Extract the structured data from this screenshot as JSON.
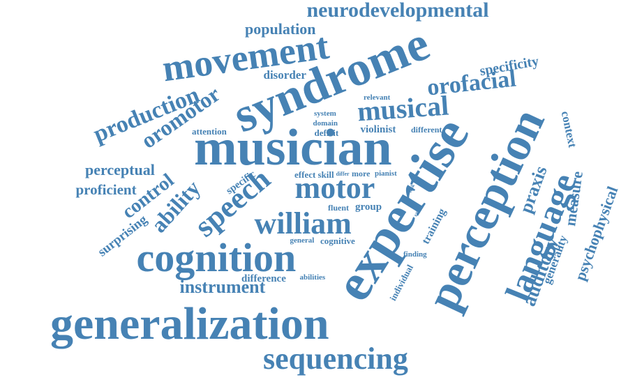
{
  "color": "#4682b4",
  "words": [
    {
      "text": "neurodevelopmental",
      "size": 30,
      "rot": 0
    },
    {
      "text": "population",
      "size": 22,
      "rot": 0
    },
    {
      "text": "movement",
      "size": 54,
      "rot": -8
    },
    {
      "text": "syndrome",
      "size": 70,
      "rot": -22
    },
    {
      "text": "specificity",
      "size": 20,
      "rot": -10
    },
    {
      "text": "disorder",
      "size": 17,
      "rot": 0
    },
    {
      "text": "orofacial",
      "size": 34,
      "rot": -6
    },
    {
      "text": "production",
      "size": 34,
      "rot": -22
    },
    {
      "text": "oromotor",
      "size": 32,
      "rot": -35
    },
    {
      "text": "musical",
      "size": 40,
      "rot": -4
    },
    {
      "text": "relevant",
      "size": 11,
      "rot": 0
    },
    {
      "text": "system",
      "size": 11,
      "rot": 0
    },
    {
      "text": "domain",
      "size": 11,
      "rot": 0
    },
    {
      "text": "attention",
      "size": 13,
      "rot": 0
    },
    {
      "text": "deficit",
      "size": 13,
      "rot": 0
    },
    {
      "text": "violinist",
      "size": 15,
      "rot": 0
    },
    {
      "text": "different",
      "size": 12,
      "rot": 0
    },
    {
      "text": "musician",
      "size": 74,
      "rot": 0
    },
    {
      "text": "context",
      "size": 17,
      "rot": 78
    },
    {
      "text": "perceptual",
      "size": 22,
      "rot": 0
    },
    {
      "text": "proficient",
      "size": 21,
      "rot": 0
    },
    {
      "text": "ability",
      "size": 32,
      "rot": -48
    },
    {
      "text": "control",
      "size": 28,
      "rot": -38
    },
    {
      "text": "specific",
      "size": 15,
      "rot": -35
    },
    {
      "text": "speech",
      "size": 44,
      "rot": -40
    },
    {
      "text": "effect",
      "size": 13,
      "rot": 0
    },
    {
      "text": "skill",
      "size": 13,
      "rot": 0
    },
    {
      "text": "differ",
      "size": 8,
      "rot": 0
    },
    {
      "text": "more",
      "size": 12,
      "rot": 0
    },
    {
      "text": "pianist",
      "size": 11,
      "rot": 0
    },
    {
      "text": "motor",
      "size": 44,
      "rot": 0
    },
    {
      "text": "task",
      "size": 7,
      "rot": -65
    },
    {
      "text": "expertise",
      "size": 76,
      "rot": -58
    },
    {
      "text": "perception",
      "size": 68,
      "rot": -65
    },
    {
      "text": "praxis",
      "size": 26,
      "rot": -70
    },
    {
      "text": "measure",
      "size": 22,
      "rot": -82
    },
    {
      "text": "surprising",
      "size": 19,
      "rot": -38
    },
    {
      "text": "fluent",
      "size": 12,
      "rot": 0
    },
    {
      "text": "group",
      "size": 15,
      "rot": 0
    },
    {
      "text": "range",
      "size": 7,
      "rot": -70
    },
    {
      "text": "william",
      "size": 44,
      "rot": 0
    },
    {
      "text": "training",
      "size": 16,
      "rot": -62
    },
    {
      "text": "language",
      "size": 50,
      "rot": -68
    },
    {
      "text": "auditory",
      "size": 28,
      "rot": -70
    },
    {
      "text": "generality",
      "size": 17,
      "rot": -70
    },
    {
      "text": "psychophysical",
      "size": 22,
      "rot": -70
    },
    {
      "text": "general",
      "size": 11,
      "rot": 0
    },
    {
      "text": "cognitive",
      "size": 13,
      "rot": 0
    },
    {
      "text": "cognition",
      "size": 58,
      "rot": 0
    },
    {
      "text": "finding",
      "size": 11,
      "rot": 0
    },
    {
      "text": "individual",
      "size": 13,
      "rot": -62
    },
    {
      "text": "difference",
      "size": 15,
      "rot": 0
    },
    {
      "text": "abilities",
      "size": 11,
      "rot": 0
    },
    {
      "text": "instrument",
      "size": 26,
      "rot": 0
    },
    {
      "text": "generalization",
      "size": 66,
      "rot": 0
    },
    {
      "text": "sequencing",
      "size": 44,
      "rot": 0
    }
  ]
}
